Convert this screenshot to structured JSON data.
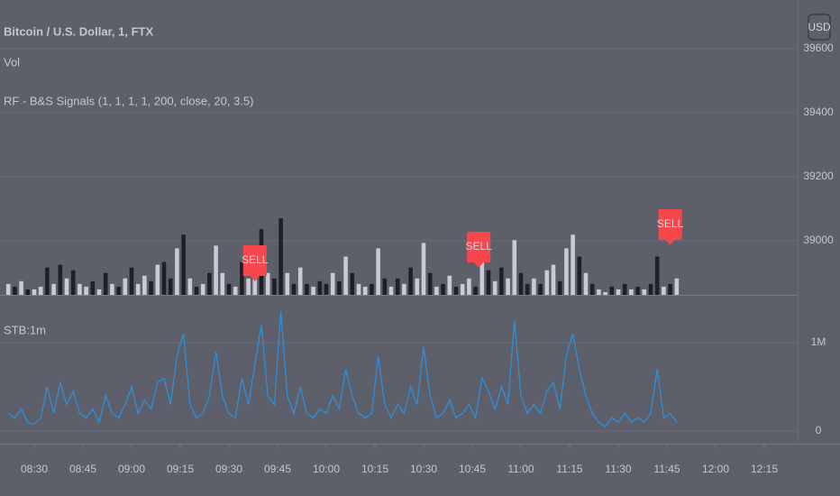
{
  "currency_button": "USD",
  "chart_data": [
    {
      "type": "bar",
      "title": "Bitcoin / U.S. Dollar, 1, FTX",
      "indicators": [
        "Vol",
        "RF - B&S Signals (1, 1, 1, 1, 200, close, 20, 3.5)"
      ],
      "ylim": [
        38831,
        39611
      ],
      "yticks": [
        39000,
        39200,
        39400,
        39600
      ],
      "grid": true,
      "xlim": [
        500,
        745
      ],
      "x": [
        502,
        504,
        506,
        508,
        510,
        512,
        514,
        516,
        518,
        520,
        522,
        524,
        526,
        528,
        530,
        532,
        534,
        536,
        538,
        540,
        542,
        544,
        546,
        548,
        550,
        552,
        554,
        556,
        558,
        560,
        562,
        564,
        566,
        568,
        570,
        572,
        574,
        576,
        578,
        580,
        582,
        584,
        586,
        588,
        590,
        592,
        594,
        596,
        598,
        600,
        602,
        604,
        606,
        608,
        610,
        612,
        614,
        616,
        618,
        620,
        622,
        624,
        626,
        628,
        630,
        632,
        634,
        636,
        638,
        640,
        642,
        644,
        646,
        648,
        650,
        652,
        654,
        656,
        658,
        660,
        662,
        664,
        666,
        668,
        670,
        672,
        674,
        676,
        678,
        680,
        682,
        684,
        686,
        688,
        690,
        692,
        694,
        696,
        698,
        700,
        702,
        704,
        706,
        708
      ],
      "values": [
        4,
        3,
        5,
        2,
        2,
        3,
        10,
        4,
        11,
        6,
        9,
        4,
        3,
        5,
        2,
        8,
        4,
        3,
        6,
        10,
        4,
        7,
        5,
        11,
        12,
        6,
        17,
        22,
        6,
        3,
        4,
        8,
        18,
        8,
        4,
        3,
        12,
        6,
        15,
        24,
        8,
        6,
        28,
        8,
        4,
        10,
        4,
        3,
        5,
        4,
        8,
        5,
        14,
        8,
        4,
        3,
        4,
        17,
        6,
        3,
        6,
        4,
        10,
        6,
        19,
        8,
        3,
        4,
        7,
        3,
        4,
        6,
        3,
        12,
        9,
        5,
        10,
        6,
        20,
        8,
        4,
        6,
        4,
        9,
        11,
        5,
        17,
        22,
        14,
        8,
        4,
        2,
        1,
        3,
        2,
        4,
        2,
        3,
        2,
        4,
        14,
        3,
        4,
        6
      ],
      "up": [
        1,
        0,
        1,
        0,
        1,
        1,
        0,
        1,
        0,
        1,
        0,
        1,
        1,
        0,
        1,
        0,
        1,
        0,
        1,
        0,
        1,
        1,
        0,
        1,
        0,
        0,
        1,
        0,
        1,
        0,
        1,
        0,
        1,
        1,
        0,
        1,
        0,
        1,
        1,
        0,
        1,
        0,
        0,
        1,
        0,
        1,
        0,
        1,
        0,
        0,
        1,
        0,
        1,
        0,
        1,
        1,
        0,
        1,
        0,
        1,
        0,
        1,
        0,
        1,
        1,
        0,
        1,
        0,
        1,
        0,
        1,
        1,
        0,
        1,
        0,
        1,
        0,
        1,
        1,
        0,
        0,
        1,
        0,
        1,
        1,
        0,
        1,
        1,
        0,
        1,
        0,
        1,
        1,
        0,
        1,
        0,
        1,
        0,
        1,
        0,
        0,
        1,
        0,
        1
      ],
      "up_color": "#c9cbd0",
      "down_color": "#1f2026",
      "annotations": [
        {
          "text": "SELL",
          "x": 578,
          "color": "#f5474c"
        },
        {
          "text": "SELL",
          "x": 647,
          "color": "#f5474c"
        },
        {
          "text": "SELL",
          "x": 706,
          "color": "#f5474c"
        }
      ]
    },
    {
      "type": "line",
      "title": "STB:1m",
      "color": "#2f8ed8",
      "ylim": [
        -142857,
        1510204
      ],
      "yticks": [
        0,
        {
          "value": 1000000,
          "label": "1M"
        }
      ],
      "grid": true,
      "xlim": [
        500,
        745
      ],
      "xticks": [
        {
          "value": 510,
          "label": "08:30"
        },
        {
          "value": 525,
          "label": "08:45"
        },
        {
          "value": 540,
          "label": "09:00"
        },
        {
          "value": 555,
          "label": "09:15"
        },
        {
          "value": 570,
          "label": "09:30"
        },
        {
          "value": 585,
          "label": "09:45"
        },
        {
          "value": 600,
          "label": "10:00"
        },
        {
          "value": 615,
          "label": "10:15"
        },
        {
          "value": 630,
          "label": "10:30"
        },
        {
          "value": 645,
          "label": "10:45"
        },
        {
          "value": 660,
          "label": "11:00"
        },
        {
          "value": 675,
          "label": "11:15"
        },
        {
          "value": 690,
          "label": "11:30"
        },
        {
          "value": 705,
          "label": "11:45"
        },
        {
          "value": 720,
          "label": "12:00"
        },
        {
          "value": 735,
          "label": "12:15"
        }
      ],
      "x": [
        502,
        504,
        506,
        508,
        510,
        512,
        514,
        516,
        518,
        520,
        522,
        524,
        526,
        528,
        530,
        532,
        534,
        536,
        538,
        540,
        542,
        544,
        546,
        548,
        550,
        552,
        554,
        556,
        558,
        560,
        562,
        564,
        566,
        568,
        570,
        572,
        574,
        576,
        578,
        580,
        582,
        584,
        586,
        588,
        590,
        592,
        594,
        596,
        598,
        600,
        602,
        604,
        606,
        608,
        610,
        612,
        614,
        616,
        618,
        620,
        622,
        624,
        626,
        628,
        630,
        632,
        634,
        636,
        638,
        640,
        642,
        644,
        646,
        648,
        650,
        652,
        654,
        656,
        658,
        660,
        662,
        664,
        666,
        668,
        670,
        672,
        674,
        676,
        678,
        680,
        682,
        684,
        686,
        688,
        690,
        692,
        694,
        696,
        698,
        700,
        702,
        704,
        706,
        708
      ],
      "values": [
        200000,
        150000,
        250000,
        100000,
        80000,
        150000,
        500000,
        200000,
        550000,
        300000,
        450000,
        200000,
        150000,
        250000,
        100000,
        400000,
        200000,
        150000,
        300000,
        500000,
        200000,
        350000,
        250000,
        550000,
        600000,
        300000,
        850000,
        1100000,
        300000,
        150000,
        200000,
        400000,
        900000,
        400000,
        200000,
        150000,
        600000,
        300000,
        750000,
        1200000,
        400000,
        300000,
        1350000,
        400000,
        200000,
        500000,
        200000,
        150000,
        250000,
        200000,
        400000,
        250000,
        700000,
        400000,
        200000,
        150000,
        200000,
        850000,
        300000,
        150000,
        300000,
        200000,
        500000,
        300000,
        950000,
        400000,
        150000,
        200000,
        350000,
        150000,
        200000,
        300000,
        150000,
        600000,
        450000,
        250000,
        500000,
        300000,
        1250000,
        400000,
        200000,
        300000,
        200000,
        450000,
        550000,
        250000,
        850000,
        1100000,
        700000,
        400000,
        200000,
        100000,
        50000,
        150000,
        100000,
        200000,
        100000,
        150000,
        100000,
        200000,
        700000,
        150000,
        200000,
        100000
      ]
    }
  ]
}
